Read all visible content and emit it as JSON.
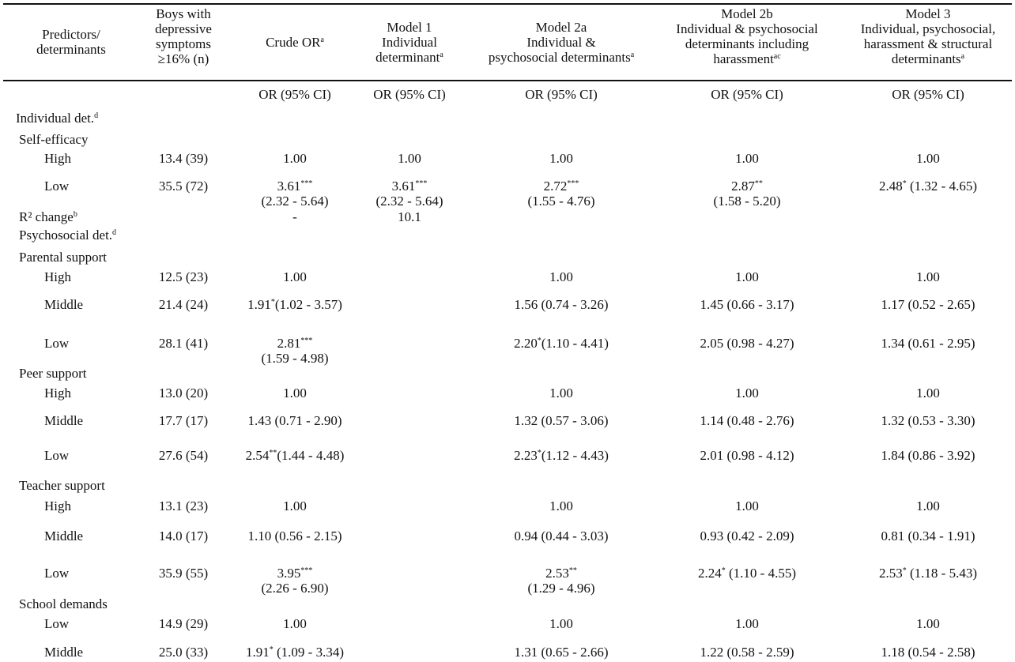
{
  "table": {
    "headers": [
      {
        "lines": [
          "Predictors/",
          "determinants"
        ],
        "sup": ""
      },
      {
        "lines": [
          "Boys with",
          "depressive",
          "symptoms",
          "≥16% (n)"
        ],
        "sup": ""
      },
      {
        "lines": [
          "Crude OR"
        ],
        "sup": "a"
      },
      {
        "lines": [
          "Model 1",
          "Individual",
          "determinant"
        ],
        "sup": "a"
      },
      {
        "lines": [
          "Model 2a",
          "Individual &",
          "psychosocial determinants"
        ],
        "sup": "a"
      },
      {
        "lines": [
          "Model 2b",
          "Individual & psychosocial",
          "determinants including",
          "harassment"
        ],
        "sup": "ac"
      },
      {
        "lines": [
          "Model 3",
          "Individual, psychosocial,",
          "harassment & structural",
          "determinants"
        ],
        "sup": "a"
      }
    ],
    "subheader": [
      "",
      "",
      "OR (95% CI)",
      "OR (95% CI)",
      "OR (95% CI)",
      "OR (95% CI)",
      "OR (95% CI)"
    ],
    "rows": [
      {
        "label": "Individual det.",
        "label_sup": "d",
        "indent": 0,
        "cells": []
      },
      {
        "label": "Self-efficacy",
        "indent": 1,
        "cells": []
      },
      {
        "label": "High",
        "indent": 2,
        "cells": [
          {
            "t": "13.4 (39)"
          },
          {
            "t": "1.00"
          },
          {
            "t": "1.00"
          },
          {
            "t": "1.00"
          },
          {
            "t": "1.00"
          },
          {
            "t": "1.00"
          }
        ]
      },
      {
        "label": "Low",
        "indent": 2,
        "cells": [
          {
            "t": "35.5 (72)"
          },
          {
            "t": "3.61",
            "sup": "***",
            "ci": "(2.32 - 5.64)"
          },
          {
            "t": "3.61",
            "sup": "***",
            "ci": "(2.32 - 5.64)"
          },
          {
            "t": "2.72",
            "sup": "***",
            "ci": "(1.55 - 4.76)"
          },
          {
            "t": "2.87",
            "sup": "**",
            "ci": "(1.58 - 5.20)"
          },
          {
            "t": "2.48",
            "sup": "*",
            "rest": " (1.32 - 4.65)"
          }
        ]
      },
      {
        "label": "R² change",
        "label_sup": "b",
        "indent": 1,
        "cells": [
          {
            "t": ""
          },
          {
            "t": "-"
          },
          {
            "t": "10.1"
          },
          {
            "t": ""
          },
          {
            "t": ""
          },
          {
            "t": ""
          }
        ]
      },
      {
        "label": "Psychosocial det.",
        "label_sup": "d",
        "indent": 1,
        "cells": []
      },
      {
        "label": "Parental support",
        "indent": 1,
        "cells": []
      },
      {
        "label": "High",
        "indent": 2,
        "cells": [
          {
            "t": "12.5 (23)"
          },
          {
            "t": "1.00"
          },
          {
            "t": ""
          },
          {
            "t": "1.00"
          },
          {
            "t": "1.00"
          },
          {
            "t": "1.00"
          }
        ]
      },
      {
        "label": "Middle",
        "indent": 2,
        "cells": [
          {
            "t": "21.4 (24)"
          },
          {
            "t": "1.91",
            "sup": "*",
            "rest": "(1.02 - 3.57)"
          },
          {
            "t": ""
          },
          {
            "t": "1.56 (0.74 - 3.26)"
          },
          {
            "t": "1.45 (0.66 - 3.17)"
          },
          {
            "t": "1.17 (0.52 - 2.65)"
          }
        ]
      },
      {
        "label": "Low",
        "indent": 2,
        "cells": [
          {
            "t": "28.1 (41)"
          },
          {
            "t": "2.81",
            "sup": "***",
            "ci": "(1.59 - 4.98)"
          },
          {
            "t": ""
          },
          {
            "t": "2.20",
            "sup": "*",
            "rest": "(1.10 - 4.41)"
          },
          {
            "t": "2.05 (0.98 - 4.27)"
          },
          {
            "t": "1.34 (0.61 - 2.95)"
          }
        ]
      },
      {
        "label": "Peer support",
        "indent": 1,
        "cells": []
      },
      {
        "label": "High",
        "indent": 2,
        "cells": [
          {
            "t": "13.0 (20)"
          },
          {
            "t": "1.00"
          },
          {
            "t": ""
          },
          {
            "t": "1.00"
          },
          {
            "t": "1.00"
          },
          {
            "t": "1.00"
          }
        ]
      },
      {
        "label": "Middle",
        "indent": 2,
        "cells": [
          {
            "t": "17.7 (17)"
          },
          {
            "t": "1.43 (0.71 - 2.90)"
          },
          {
            "t": ""
          },
          {
            "t": "1.32 (0.57 - 3.06)"
          },
          {
            "t": "1.14 (0.48 - 2.76)"
          },
          {
            "t": "1.32 (0.53 - 3.30)"
          }
        ]
      },
      {
        "label": "Low",
        "indent": 2,
        "cells": [
          {
            "t": "27.6 (54)"
          },
          {
            "t": "2.54",
            "sup": "**",
            "rest": "(1.44 - 4.48)"
          },
          {
            "t": ""
          },
          {
            "t": "2.23",
            "sup": "*",
            "rest": "(1.12 - 4.43)"
          },
          {
            "t": "2.01 (0.98 - 4.12)"
          },
          {
            "t": "1.84 (0.86 - 3.92)"
          }
        ]
      },
      {
        "label": "Teacher support",
        "indent": 1,
        "cells": []
      },
      {
        "label": "High",
        "indent": 2,
        "cells": [
          {
            "t": "13.1 (23)"
          },
          {
            "t": "1.00"
          },
          {
            "t": ""
          },
          {
            "t": "1.00"
          },
          {
            "t": "1.00"
          },
          {
            "t": "1.00"
          }
        ]
      },
      {
        "label": "Middle",
        "indent": 2,
        "cells": [
          {
            "t": "14.0 (17)"
          },
          {
            "t": "1.10 (0.56 - 2.15)"
          },
          {
            "t": ""
          },
          {
            "t": "0.94 (0.44 - 3.03)"
          },
          {
            "t": "0.93 (0.42 - 2.09)"
          },
          {
            "t": "0.81 (0.34 - 1.91)"
          }
        ]
      },
      {
        "label": "Low",
        "indent": 2,
        "cells": [
          {
            "t": "35.9 (55)"
          },
          {
            "t": "3.95",
            "sup": "***",
            "ci": "(2.26 - 6.90)"
          },
          {
            "t": ""
          },
          {
            "t": "2.53",
            "sup": "**",
            "ci": "(1.29 - 4.96)"
          },
          {
            "t": "2.24",
            "sup": "*",
            "rest": " (1.10 - 4.55)"
          },
          {
            "t": "2.53",
            "sup": "*",
            "rest": " (1.18 - 5.43)"
          }
        ]
      },
      {
        "label": "School demands",
        "indent": 1,
        "cells": []
      },
      {
        "label": "Low",
        "indent": 2,
        "cells": [
          {
            "t": "14.9 (29)"
          },
          {
            "t": "1.00"
          },
          {
            "t": ""
          },
          {
            "t": "1.00"
          },
          {
            "t": "1.00"
          },
          {
            "t": "1.00"
          }
        ]
      },
      {
        "label": "Middle",
        "indent": 2,
        "cells": [
          {
            "t": "25.0 (33)"
          },
          {
            "t": "1.91",
            "sup": "*",
            "rest": " (1.09 - 3.34)"
          },
          {
            "t": ""
          },
          {
            "t": "1.31 (0.65 - 2.66)"
          },
          {
            "t": "1.22 (0.58 - 2.59)"
          },
          {
            "t": "1.18 (0.54 - 2.58)"
          }
        ]
      }
    ]
  }
}
